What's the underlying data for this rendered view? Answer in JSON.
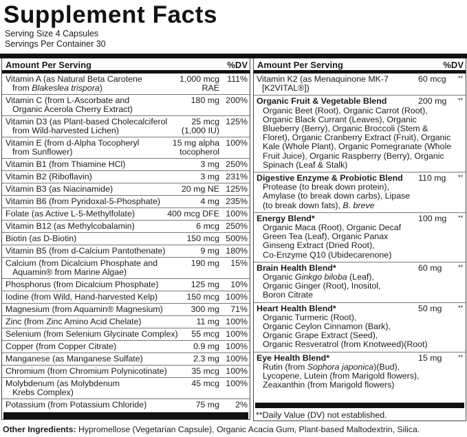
{
  "title": "Supplement Facts",
  "serving_size": "Serving Size 4 Capsules",
  "servings_per_container": "Servings Per Container 30",
  "header": {
    "amount": "Amount Per Serving",
    "dv": "%DV"
  },
  "left_rows": [
    {
      "name": [
        [
          "Vitamin A (as Natural Beta Carotene"
        ],
        [
          "from ",
          {
            "i": "Blakeslea trispora"
          },
          ")"
        ]
      ],
      "amount": [
        "1,000 mcg",
        "RAE"
      ],
      "dv": "111%"
    },
    {
      "name": [
        [
          "Vitamin C (from L-Ascorbate and"
        ],
        [
          "Organic Acerola Cherry Extract)"
        ]
      ],
      "amount": [
        "180 mg"
      ],
      "dv": "200%"
    },
    {
      "name": [
        [
          "Vitamin D3 (as Plant-based Cholecalciferol"
        ],
        [
          "from Wild-harvested Lichen)"
        ]
      ],
      "amount": [
        "25 mcg",
        "(1,000 IU)"
      ],
      "dv": "125%"
    },
    {
      "name": [
        [
          "Vitamin E (from d-Alpha Tocopheryl"
        ],
        [
          "from Sunflower)"
        ]
      ],
      "amount": [
        "15 mg alpha",
        "tocopherol"
      ],
      "dv": "100%"
    },
    {
      "name": [
        [
          "Vitamin B1 (from Thiamine HCl)"
        ]
      ],
      "amount": [
        "3 mg"
      ],
      "dv": "250%"
    },
    {
      "name": [
        [
          "Vitamin B2 (Riboflavin)"
        ]
      ],
      "amount": [
        "3 mg"
      ],
      "dv": "231%"
    },
    {
      "name": [
        [
          "Vitamin B3 (as Niacinamide)"
        ]
      ],
      "amount": [
        "20 mg NE"
      ],
      "dv": "125%"
    },
    {
      "name": [
        [
          "Vitamin B6 (from Pyridoxal-5-Phosphate)"
        ]
      ],
      "amount": [
        "4 mg"
      ],
      "dv": "235%"
    },
    {
      "name": [
        [
          "Folate (as Active L-5-Methylfolate)"
        ]
      ],
      "amount": [
        "400 mcg DFE"
      ],
      "dv": "100%"
    },
    {
      "name": [
        [
          "Vitamin B12 (as Methylcobalamin)"
        ]
      ],
      "amount": [
        "6 mcg"
      ],
      "dv": "250%"
    },
    {
      "name": [
        [
          "Biotin (as D-Biotin)"
        ]
      ],
      "amount": [
        "150 mcg"
      ],
      "dv": "500%"
    },
    {
      "name": [
        [
          "Vitamin B5 (from d-Calcium Pantothenate)"
        ]
      ],
      "amount": [
        "9 mg"
      ],
      "dv": "180%"
    },
    {
      "name": [
        [
          "Calcium (from Dicalcium Phosphate and"
        ],
        [
          "Aquamin® from Marine Algae)"
        ]
      ],
      "amount": [
        "190 mg"
      ],
      "dv": "15%"
    },
    {
      "name": [
        [
          "Phosphorus (from Dicalcium Phosphate)"
        ]
      ],
      "amount": [
        "125 mg"
      ],
      "dv": "10%"
    },
    {
      "name": [
        [
          "Iodine (from Wild, Hand-harvested Kelp)"
        ]
      ],
      "amount": [
        "150 mcg"
      ],
      "dv": "100%"
    },
    {
      "name": [
        [
          "Magnesium (from Aquamin® Magnesium)"
        ]
      ],
      "amount": [
        "300 mg"
      ],
      "dv": "71%"
    },
    {
      "name": [
        [
          "Zinc (from Zinc Amino Acid Chelate)"
        ]
      ],
      "amount": [
        "11 mg"
      ],
      "dv": "100%"
    },
    {
      "name": [
        [
          "Selenium (from Selenium Glycinate Complex)"
        ]
      ],
      "amount": [
        "55 mcg"
      ],
      "dv": "100%"
    },
    {
      "name": [
        [
          "Copper (from Copper Citrate)"
        ]
      ],
      "amount": [
        "0.9 mg"
      ],
      "dv": "100%"
    },
    {
      "name": [
        [
          "Manganese (as Manganese Sulfate)"
        ]
      ],
      "amount": [
        "2.3 mg"
      ],
      "dv": "100%"
    },
    {
      "name": [
        [
          "Chromium (from Chromium Polynicotinate)"
        ]
      ],
      "amount": [
        "35 mcg"
      ],
      "dv": "100%"
    },
    {
      "name": [
        [
          "Molybdenum (as Molybdenum"
        ],
        [
          "Krebs Complex)"
        ]
      ],
      "amount": [
        "45 mcg"
      ],
      "dv": "100%"
    },
    {
      "name": [
        [
          "Potassium (from Potassium Chloride)"
        ]
      ],
      "amount": [
        "75 mg"
      ],
      "dv": "2%"
    }
  ],
  "right_rows": [
    {
      "name": [
        [
          "Vitamin K2 (as Menaquinone MK-7"
        ],
        [
          "[K2VITAL®])"
        ]
      ],
      "bold": false,
      "desc": [],
      "amount": "60 mcg",
      "dv": "**"
    },
    {
      "name": [
        [
          "Organic Fruit & Vegetable Blend"
        ]
      ],
      "bold": true,
      "desc": [
        [
          "Organic Beet (Root), Organic Carrot (Root),"
        ],
        [
          "Organic Black Currant (Leaves), Organic"
        ],
        [
          "Blueberry (Berry), Organic Broccoli (Stem &"
        ],
        [
          "Floret), Organic Cranberry Extract (Fruit), Organic"
        ],
        [
          "Kale (Whole Plant), Organic Pomegranate (Whole"
        ],
        [
          "Fruit Juice), Organic Raspberry (Berry), Organic"
        ],
        [
          "Spinach (Leaf & Stalk)"
        ]
      ],
      "amount": "200 mg",
      "dv": "**"
    },
    {
      "name": [
        [
          "Digestive Enzyme & Probiotic Blend"
        ]
      ],
      "bold": true,
      "desc": [
        [
          "Protease (to break down protein),"
        ],
        [
          "Amylase (to break down carbs), Lipase"
        ],
        [
          "(to break down fats), ",
          {
            "i": "B. breve"
          }
        ]
      ],
      "amount": "110 mg",
      "dv": "**"
    },
    {
      "name": [
        [
          "Energy Blend*"
        ]
      ],
      "bold": true,
      "desc": [
        [
          "Organic Maca (Root), Organic Decaf"
        ],
        [
          "Green Tea (Leaf), Organic Panax"
        ],
        [
          "Ginseng Extract (Dried Root),"
        ],
        [
          "Co-Enzyme Q10 (Ubidecarenone)"
        ]
      ],
      "amount": "100 mg",
      "dv": "**"
    },
    {
      "name": [
        [
          "Brain Health Blend*"
        ]
      ],
      "bold": true,
      "desc": [
        [
          "Organic ",
          {
            "i": "Ginkgo biloba"
          },
          " (Leaf),"
        ],
        [
          "Organic Ginger (Root), Inositol,"
        ],
        [
          "Boron Citrate"
        ]
      ],
      "amount": "60 mg",
      "dv": "**"
    },
    {
      "name": [
        [
          "Heart Health Blend*"
        ]
      ],
      "bold": true,
      "desc": [
        [
          "Organic Turmeric (Root),"
        ],
        [
          "Organic Ceylon Cinnamon (Bark),"
        ],
        [
          "Organic Grape Extract (Seed),"
        ],
        [
          "Organic Resveratrol (from Knotweed)(Root)"
        ]
      ],
      "amount": "50 mg",
      "dv": "**"
    },
    {
      "name": [
        [
          "Eye Health Blend*"
        ]
      ],
      "bold": true,
      "desc": [
        [
          "Rutin (from ",
          {
            "i": "Sophora japonica"
          },
          ")(Bud),"
        ],
        [
          "Lycopene, Lutein (from Marigold flowers),"
        ],
        [
          "Zeaxanthin (from Marigold flowers)"
        ]
      ],
      "amount": "15 mg",
      "dv": "**"
    }
  ],
  "footnote": "**Daily Value (DV) not established.",
  "other_ingredients": {
    "label": "Other Ingredients:",
    "text": " Hypromellose (Vegetarian Capsule), Organic Acacia Gum, Plant-based Maltodextrin, Silica."
  }
}
